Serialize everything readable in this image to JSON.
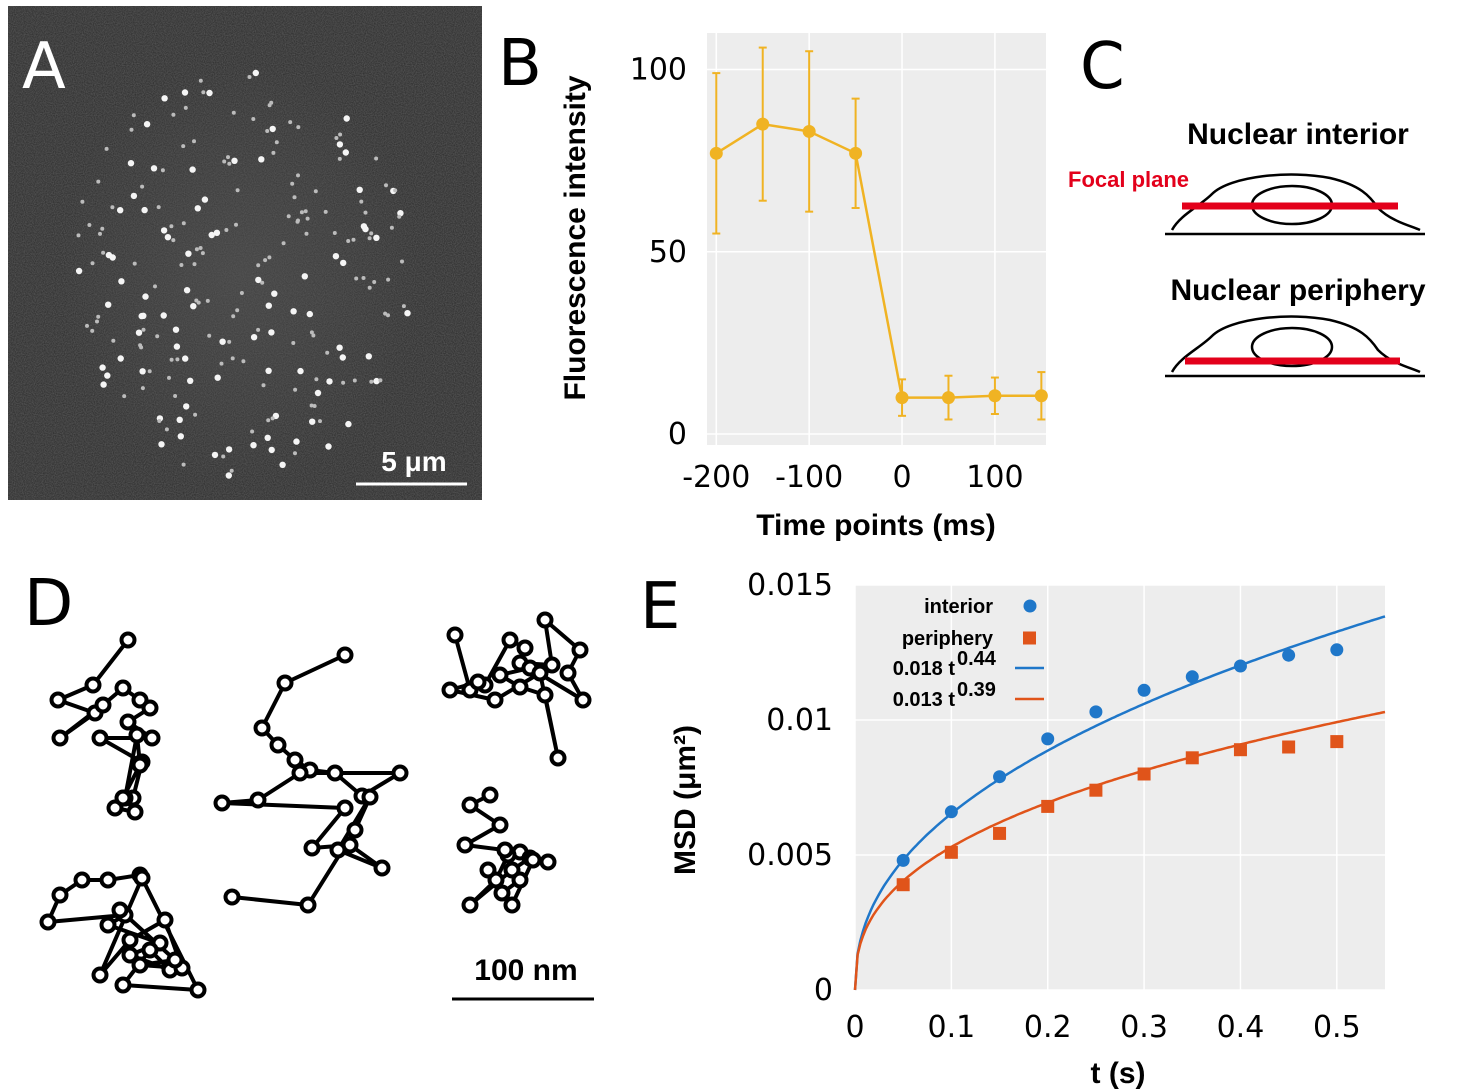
{
  "panels": {
    "A": {
      "letter": "A",
      "scale_bar_label": "5 μm"
    },
    "B": {
      "letter": "B"
    },
    "C": {
      "letter": "C",
      "top_title": "Nuclear interior",
      "focal_label": "Focal plane",
      "bottom_title": "Nuclear periphery",
      "colors": {
        "focal_plane": "#e3001b"
      }
    },
    "D": {
      "letter": "D",
      "scale_bar_label": "100 nm"
    },
    "E": {
      "letter": "E"
    }
  },
  "chart_data": [
    {
      "id": "B",
      "type": "line",
      "xlabel": "Time points  (ms)",
      "ylabel": "Fluorescence intensity",
      "xlim": [
        -210,
        155
      ],
      "ylim": [
        -3,
        110
      ],
      "xticks": [
        -200,
        -100,
        0,
        100
      ],
      "xtick_labels": [
        "-200",
        "-100",
        "0",
        "100"
      ],
      "yticks": [
        0,
        50,
        100
      ],
      "ytick_labels": [
        "0",
        "50",
        "100"
      ],
      "grid": true,
      "series": [
        {
          "color": "#f0b323",
          "x": [
            -200,
            -150,
            -100,
            -50,
            0,
            50,
            100,
            150
          ],
          "y": [
            77,
            85,
            83,
            77,
            10,
            10,
            10.5,
            10.5
          ],
          "err": [
            22,
            21,
            22,
            15,
            5,
            6,
            5,
            6.5
          ]
        }
      ]
    },
    {
      "id": "E",
      "type": "scatter",
      "xlabel": "t  (s)",
      "ylabel": "MSD  (μm²)",
      "xlim": [
        0,
        0.55
      ],
      "ylim": [
        0,
        0.015
      ],
      "xticks": [
        0,
        0.1,
        0.2,
        0.3,
        0.4,
        0.5
      ],
      "xtick_labels": [
        "0",
        "0.1",
        "0.2",
        "0.3",
        "0.4",
        "0.5"
      ],
      "yticks": [
        0,
        0.005,
        0.01,
        0.015
      ],
      "ytick_labels": [
        "0",
        "0.005",
        "0.01",
        "0.015"
      ],
      "grid": true,
      "legend_position": "top-left",
      "series": [
        {
          "name": "interior",
          "marker": "circle",
          "color": "#1f77c9",
          "x": [
            0.05,
            0.1,
            0.15,
            0.2,
            0.25,
            0.3,
            0.35,
            0.4,
            0.45,
            0.5
          ],
          "y": [
            0.0048,
            0.0066,
            0.0079,
            0.0093,
            0.0103,
            0.0111,
            0.0116,
            0.012,
            0.0124,
            0.0126
          ]
        },
        {
          "name": "periphery",
          "marker": "square",
          "color": "#e0541a",
          "x": [
            0.05,
            0.1,
            0.15,
            0.2,
            0.25,
            0.3,
            0.35,
            0.4,
            0.45,
            0.5
          ],
          "y": [
            0.0039,
            0.0051,
            0.0058,
            0.0068,
            0.0074,
            0.008,
            0.0086,
            0.0089,
            0.009,
            0.0092
          ]
        }
      ],
      "fits": [
        {
          "name": "0.018 t",
          "exponent_text": "0.44",
          "a": 0.018,
          "b": 0.44,
          "color": "#1f77c9"
        },
        {
          "name": "0.013 t",
          "exponent_text": "0.39",
          "a": 0.013,
          "b": 0.39,
          "color": "#e0541a"
        }
      ]
    }
  ]
}
